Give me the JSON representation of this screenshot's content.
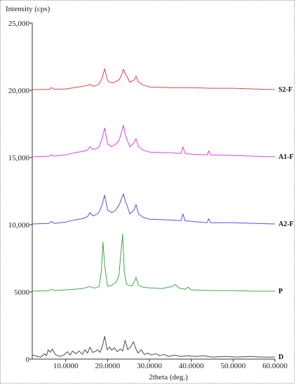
{
  "chart_data": {
    "type": "line",
    "title": "",
    "xlabel": "2theta (deg.)",
    "ylabel": "Intensity (cps)",
    "xlim": [
      2,
      60
    ],
    "ylim": [
      0,
      25000
    ],
    "grid": false,
    "legend": "none",
    "x_ticks": [
      10,
      20,
      30,
      40,
      50,
      60
    ],
    "x_tick_labels": [
      "10.0000",
      "20.0000",
      "30.0000",
      "40.0000",
      "50.0000",
      "60.0000"
    ],
    "y_ticks": [
      0,
      5000,
      10000,
      15000,
      20000,
      25000
    ],
    "y_tick_labels": [
      "0",
      "5000",
      "10,000",
      "15,000",
      "20,000",
      "25,000"
    ],
    "series": [
      {
        "name": "S2-F",
        "color": "#e8413c",
        "baseline": 20000,
        "x": [
          2,
          6,
          6.6,
          7.2,
          10,
          12,
          14,
          15.2,
          15.8,
          16.5,
          17.2,
          17.6,
          18.0,
          18.7,
          19.3,
          20.0,
          21.0,
          22.0,
          22.8,
          23.4,
          23.8,
          24.3,
          24.7,
          25.3,
          26.3,
          26.8,
          27.4,
          28.5,
          30,
          35,
          40,
          45,
          50,
          55,
          60
        ],
        "values": [
          20050,
          20060,
          20200,
          20080,
          20100,
          20200,
          20300,
          20350,
          20450,
          20300,
          20350,
          20400,
          20500,
          20900,
          21600,
          20700,
          20550,
          20650,
          20800,
          21200,
          21550,
          21200,
          21000,
          20600,
          20750,
          21050,
          20600,
          20400,
          20250,
          20200,
          20200,
          20150,
          20150,
          20100,
          20050
        ]
      },
      {
        "name": "A1-F",
        "color": "#e83de0",
        "baseline": 15000,
        "x": [
          2,
          6,
          6.6,
          7.2,
          10,
          12,
          14,
          15.2,
          15.8,
          16.5,
          17.2,
          17.6,
          18.0,
          18.7,
          19.3,
          20.0,
          21.0,
          22.0,
          22.8,
          23.4,
          23.8,
          24.3,
          24.7,
          25.3,
          26.3,
          26.8,
          27.4,
          28.5,
          30,
          35,
          37.5,
          38.0,
          38.5,
          40,
          43.8,
          44.2,
          44.6,
          50,
          55,
          60
        ],
        "values": [
          15050,
          15100,
          15200,
          15100,
          15200,
          15350,
          15450,
          15550,
          15800,
          15600,
          15650,
          15700,
          15800,
          16400,
          17200,
          16000,
          15800,
          16000,
          16300,
          17000,
          17400,
          16600,
          16300,
          15800,
          16100,
          16400,
          15800,
          15550,
          15400,
          15350,
          15300,
          15800,
          15300,
          15250,
          15200,
          15500,
          15200,
          15150,
          15100,
          15050
        ]
      },
      {
        "name": "A2-F",
        "color": "#4b54e8",
        "baseline": 10000,
        "x": [
          2,
          6,
          6.6,
          7.2,
          10,
          12,
          14,
          15.2,
          15.8,
          16.5,
          17.2,
          17.6,
          18.0,
          18.7,
          19.3,
          20.0,
          21.0,
          22.0,
          22.8,
          23.4,
          23.8,
          24.3,
          24.7,
          25.3,
          26.3,
          26.8,
          27.4,
          28.5,
          30,
          35,
          37.5,
          38.0,
          38.5,
          40,
          43.8,
          44.2,
          44.6,
          50,
          55,
          60
        ],
        "values": [
          10050,
          10100,
          10250,
          10100,
          10200,
          10350,
          10450,
          10600,
          10900,
          10650,
          10750,
          10800,
          10950,
          11500,
          12200,
          11100,
          10900,
          11100,
          11500,
          12000,
          12300,
          11700,
          11400,
          10800,
          11100,
          11500,
          10800,
          10550,
          10400,
          10350,
          10300,
          10800,
          10300,
          10250,
          10150,
          10450,
          10150,
          10150,
          10100,
          10050
        ]
      },
      {
        "name": "P",
        "color": "#3fa84a",
        "baseline": 5000,
        "x": [
          2,
          6,
          6.6,
          7.2,
          10,
          12,
          14,
          15.2,
          15.8,
          16.5,
          17.2,
          17.6,
          18.0,
          18.5,
          18.9,
          19.3,
          20.0,
          21.0,
          22.0,
          22.7,
          23.2,
          23.6,
          24.0,
          24.5,
          25.0,
          25.8,
          26.3,
          26.8,
          27.4,
          28.5,
          30,
          33,
          35.5,
          36.2,
          37,
          38.5,
          39.2,
          40,
          45,
          50,
          55,
          60
        ],
        "values": [
          5050,
          5100,
          5200,
          5100,
          5150,
          5200,
          5250,
          5350,
          5400,
          5300,
          5300,
          5350,
          5400,
          6500,
          8700,
          7000,
          5400,
          5500,
          5700,
          6200,
          8000,
          9300,
          6500,
          5600,
          5500,
          5450,
          5700,
          6100,
          5500,
          5350,
          5300,
          5250,
          5400,
          5550,
          5300,
          5200,
          5350,
          5150,
          5100,
          5100,
          5050,
          5050
        ]
      },
      {
        "name": "D",
        "color": "#4a4a4a",
        "baseline": 0,
        "x": [
          2,
          4,
          5.0,
          5.4,
          5.8,
          6.3,
          6.8,
          7.5,
          8.5,
          9.5,
          10.5,
          11.0,
          11.6,
          12.4,
          13.2,
          14.0,
          14.6,
          15.2,
          15.8,
          16.4,
          17.0,
          17.6,
          18.2,
          18.8,
          19.3,
          19.9,
          20.5,
          21.0,
          21.6,
          22.3,
          23.0,
          23.6,
          24.2,
          24.8,
          25.5,
          26.2,
          26.7,
          27.3,
          28.0,
          28.8,
          29.6,
          30.5,
          31.5,
          32.5,
          33.5,
          34.5,
          36,
          37.5,
          39,
          41,
          43,
          45,
          48,
          51,
          54,
          57,
          60
        ],
        "values": [
          300,
          150,
          400,
          250,
          700,
          500,
          750,
          350,
          200,
          300,
          550,
          300,
          600,
          400,
          600,
          350,
          700,
          450,
          900,
          500,
          550,
          700,
          500,
          1000,
          1700,
          700,
          900,
          650,
          850,
          550,
          750,
          600,
          1400,
          700,
          900,
          1300,
          800,
          450,
          700,
          350,
          450,
          300,
          400,
          250,
          350,
          200,
          300,
          200,
          250,
          200,
          250,
          150,
          200,
          150,
          200,
          150,
          150
        ]
      }
    ]
  }
}
